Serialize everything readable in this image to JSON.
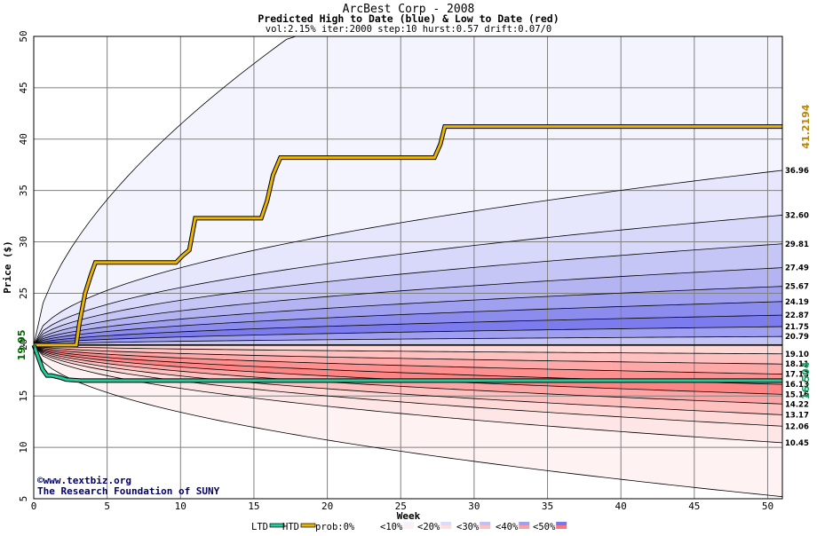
{
  "chart_data": {
    "type": "area",
    "title": "ArcBest Corp - 2008",
    "subtitle": "Predicted High to Date (blue) &  Low to Date (red)",
    "params": "vol:2.15% iter:2000 step:10 hurst:0.57 drift:0.07/0",
    "xlabel": "Week",
    "ylabel": "Price ($)",
    "xlim": [
      0,
      51
    ],
    "ylim": [
      5,
      50
    ],
    "x_ticks": [
      0,
      5,
      10,
      15,
      20,
      25,
      30,
      35,
      40,
      45,
      50
    ],
    "y_ticks": [
      5,
      10,
      15,
      20,
      25,
      30,
      35,
      40,
      45,
      50
    ],
    "grid": true,
    "start_price": 19.95,
    "start_price_label": "19.95",
    "upper_quantile_end_values": [
      36.96,
      32.6,
      29.81,
      27.49,
      25.67,
      24.19,
      22.87,
      21.75,
      20.79
    ],
    "upper_quantile_end_labels": [
      "36.96",
      "32.60",
      "29.81",
      "27.49",
      "25.67",
      "24.19",
      "22.87",
      "21.75",
      "20.79"
    ],
    "lower_quantile_end_values": [
      19.1,
      18.11,
      17.13,
      16.13,
      15.16,
      14.22,
      13.17,
      12.06,
      10.45
    ],
    "lower_quantile_end_labels": [
      "19.10",
      "18.11",
      "17.13",
      "16.13",
      "15.16",
      "14.22",
      "13.17",
      "12.06",
      "10.45"
    ],
    "outer_upper_end": 50,
    "outer_lower_end": 5.2,
    "series": [
      {
        "name": "HTD",
        "color": "#e8b400",
        "x": [
          0,
          2.9,
          3.1,
          3.5,
          3.9,
          4.2,
          9.7,
          10.1,
          10.6,
          11.0,
          15.5,
          15.9,
          16.3,
          16.8,
          27.3,
          27.7,
          28.0,
          51
        ],
        "y": [
          19.95,
          19.95,
          22.0,
          25.0,
          26.8,
          28.0,
          28.0,
          28.6,
          29.2,
          32.3,
          32.3,
          34.0,
          36.5,
          38.2,
          38.2,
          39.5,
          41.22,
          41.22
        ]
      },
      {
        "name": "LTD",
        "color": "#22cc99",
        "x": [
          0,
          0.3,
          0.6,
          0.9,
          1.2,
          1.8,
          2.2,
          3.2,
          51
        ],
        "y": [
          19.95,
          18.8,
          17.6,
          17.0,
          17.0,
          16.8,
          16.6,
          16.5,
          16.5
        ]
      }
    ],
    "htd_final": "41.2194",
    "ltd_final": "16.504",
    "credit_lines": [
      "©www.textbiz.org",
      "The Research Foundation of SUNY"
    ],
    "legend": {
      "items": [
        {
          "label": "LTD",
          "color": "#22cc99",
          "kind": "line"
        },
        {
          "label": "HTD",
          "color": "#e8b400",
          "kind": "line"
        },
        {
          "label": "prob:0%",
          "color": "#ffffff",
          "kind": "swatch"
        },
        {
          "label": "<10%",
          "color": "#f4f4ff",
          "color2": "#fff0f0",
          "kind": "swatch"
        },
        {
          "label": "<20%",
          "color": "#dcdcfa",
          "color2": "#ffdede",
          "kind": "swatch"
        },
        {
          "label": "<30%",
          "color": "#c0c0f2",
          "color2": "#ffc0c0",
          "kind": "swatch"
        },
        {
          "label": "<40%",
          "color": "#a0a0ee",
          "color2": "#ff9f9f",
          "kind": "swatch"
        },
        {
          "label": "<50%",
          "color": "#7878ee",
          "color2": "#ff7878",
          "kind": "swatch"
        }
      ]
    },
    "colors": {
      "upper_bands": [
        "#f4f4ff",
        "#e6e6fd",
        "#d8d8fa",
        "#c6c6f6",
        "#b4b4f3",
        "#a0a0f0",
        "#8c8cee",
        "#7c7cee",
        "#9e9ef2",
        "#c4c4f6"
      ],
      "lower_bands": [
        "#ffd8d8",
        "#ffc0c0",
        "#ffa8a8",
        "#ff9090",
        "#ff8484",
        "#ffa4a4",
        "#ffc0c0",
        "#ffd8d8",
        "#ffe6e6",
        "#fff2f2"
      ],
      "grid": "#808080",
      "price_line": "#000000",
      "htd_label": "#b8860b",
      "ltd_label": "#129a5c",
      "start_label": "#006400"
    }
  }
}
